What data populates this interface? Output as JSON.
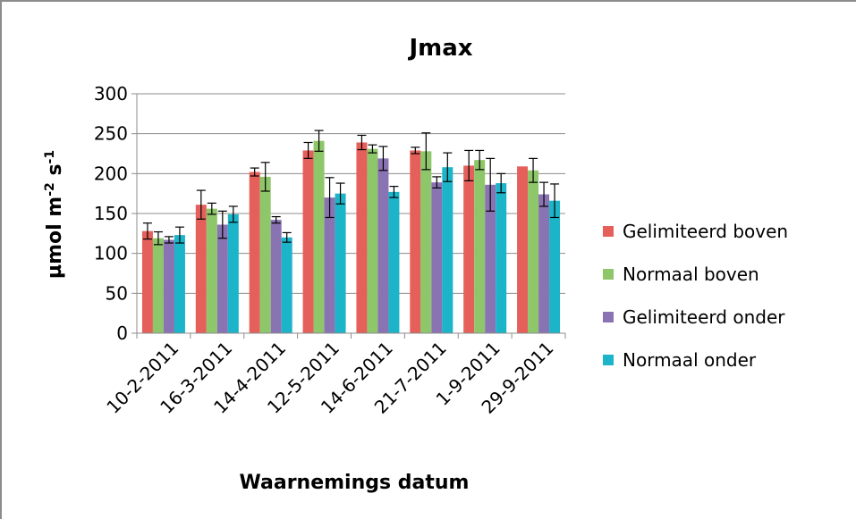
{
  "chart_data": {
    "type": "bar",
    "title": "Jmax",
    "xlabel": "Waarnemings datum",
    "ylabel": "µmol m-2 s-1",
    "ylabel_parts": {
      "base": "µmol m",
      "exp1": "-2",
      "mid": " s",
      "exp2": "-1"
    },
    "ylim": [
      0,
      300
    ],
    "yticks": [
      0,
      50,
      100,
      150,
      200,
      250,
      300
    ],
    "grid": true,
    "legend_position": "right",
    "categories": [
      "10-2-2011",
      "16-3-2011",
      "14-4-2011",
      "12-5-2011",
      "14-6-2011",
      "21-7-2011",
      "1-9-2011",
      "29-9-2011"
    ],
    "series": [
      {
        "name": "Gelimiteerd boven",
        "color": "#e5605b",
        "values": [
          128,
          161,
          202,
          229,
          239,
          229,
          210,
          209
        ],
        "errors": [
          10,
          18,
          5,
          10,
          9,
          4,
          19,
          0
        ]
      },
      {
        "name": "Normaal boven",
        "color": "#8ec66a",
        "values": [
          119,
          156,
          196,
          241,
          231,
          228,
          217,
          204
        ],
        "errors": [
          8,
          7,
          18,
          13,
          5,
          23,
          12,
          15
        ]
      },
      {
        "name": "Gelimiteerd onder",
        "color": "#8a73b3",
        "values": [
          117,
          136,
          142,
          170,
          219,
          189,
          186,
          174
        ],
        "errors": [
          4,
          17,
          4,
          25,
          15,
          7,
          33,
          15
        ]
      },
      {
        "name": "Normaal onder",
        "color": "#1bb4c9",
        "values": [
          123,
          149,
          120,
          175,
          177,
          208,
          188,
          166
        ],
        "errors": [
          10,
          10,
          6,
          13,
          7,
          18,
          12,
          21
        ]
      }
    ]
  }
}
